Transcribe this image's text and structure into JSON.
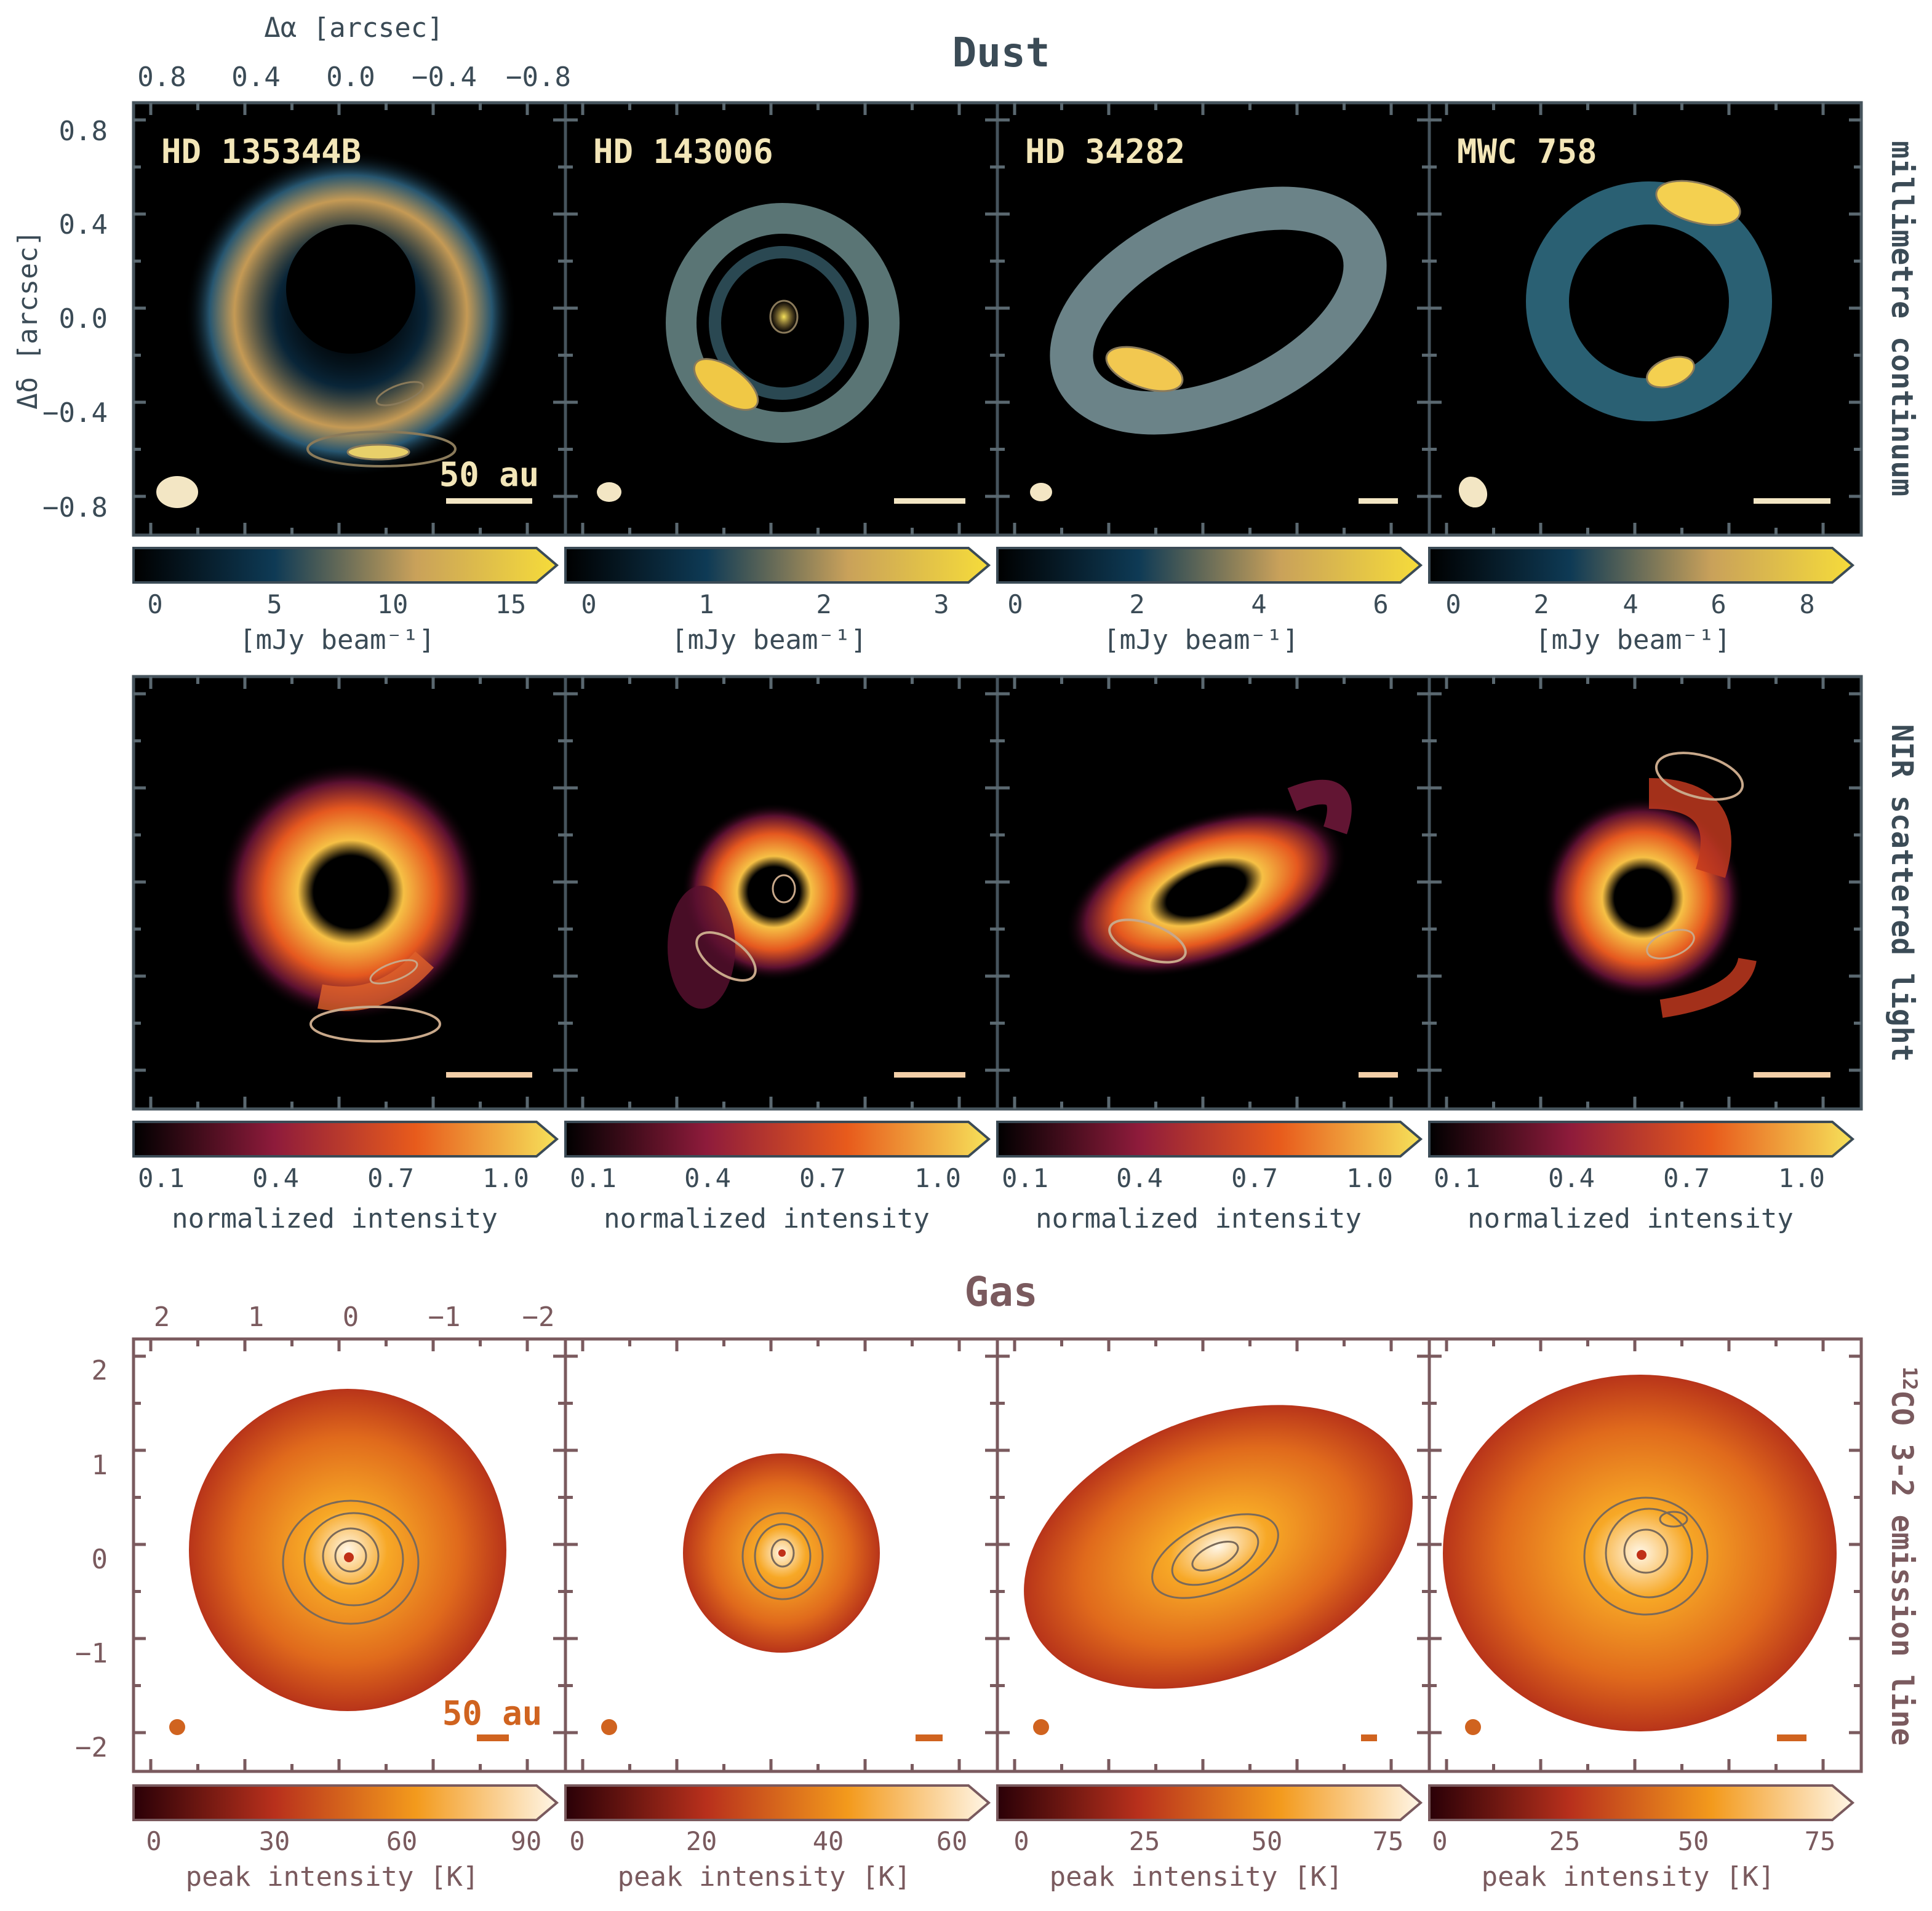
{
  "figure": {
    "dust_title": "Dust",
    "gas_title": "Gas",
    "rows": [
      {
        "key": "mm",
        "label": "millimetre continuum",
        "label_color": "#3b4b56"
      },
      {
        "key": "nir",
        "label": "NIR scattered light",
        "label_color": "#3b4b56"
      },
      {
        "key": "gas",
        "label_sup": "12",
        "label": "CO 3-2 emission line",
        "label_color": "#7a5a5e"
      }
    ],
    "targets": [
      {
        "name": "HD 135344B"
      },
      {
        "name": "HD 143006"
      },
      {
        "name": "HD 34282"
      },
      {
        "name": "MWC 758"
      }
    ],
    "dust_axes": {
      "xlabel": "Δα [arcsec]",
      "ylabel": "Δδ [arcsec]",
      "xticks": [
        "0.8",
        "0.4",
        "0.0",
        "−0.4",
        "−0.8"
      ],
      "yticks": [
        "0.8",
        "0.4",
        "0.0",
        "−0.4",
        "−0.8"
      ]
    },
    "gas_axes": {
      "xticks": [
        "2",
        "1",
        "0",
        "−1",
        "−2"
      ],
      "yticks": [
        "2",
        "1",
        "0",
        "−1",
        "−2"
      ]
    },
    "scalebar_label": "50 au",
    "colorbars": {
      "mm": {
        "label": "[mJy beam⁻¹]",
        "ticks": [
          [
            "0",
            "5",
            "10",
            "15"
          ],
          [
            "0",
            "1",
            "2",
            "3"
          ],
          [
            "0",
            "2",
            "4",
            "6"
          ],
          [
            "0",
            "2",
            "4",
            "6",
            "8"
          ]
        ],
        "colors": [
          "#000000",
          "#0e3a55",
          "#c9a15a",
          "#f6dc3a"
        ]
      },
      "nir": {
        "label": "normalized intensity",
        "ticks": [
          "0.1",
          "0.4",
          "0.7",
          "1.0"
        ],
        "colors": [
          "#000000",
          "#8e1b3b",
          "#e85b1c",
          "#f6e25a"
        ]
      },
      "gas": {
        "label": "peak intensity [K]",
        "ticks": [
          [
            "0",
            "30",
            "60",
            "90"
          ],
          [
            "0",
            "20",
            "40",
            "60"
          ],
          [
            "0",
            "25",
            "50",
            "75"
          ],
          [
            "0",
            "25",
            "50",
            "75"
          ]
        ],
        "colors": [
          "#2a0007",
          "#b8301c",
          "#f39a1c",
          "#fff6e6"
        ]
      }
    },
    "colors": {
      "dust_text": "#3b4b56",
      "gas_text": "#7a5a5e",
      "target_label": "#f3e6b8",
      "beam_dust": "#f3e6c4",
      "scalebar_nir": "#f3cfa8",
      "gas_accent": "#d0631f",
      "frame_dust": "#46545d",
      "frame_gas": "#7a5a5e"
    }
  }
}
